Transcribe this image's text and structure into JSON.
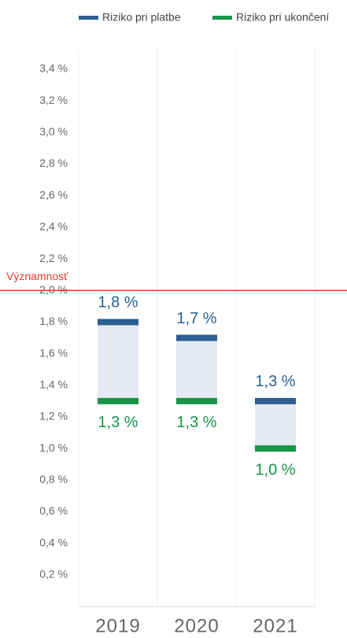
{
  "chart_data": {
    "type": "range",
    "categories": [
      "2019",
      "2020",
      "2021"
    ],
    "series": [
      {
        "name": "Riziko pri platbe",
        "color": "#2b5f91",
        "values": [
          1.8,
          1.7,
          1.3
        ],
        "value_labels": [
          "1,8 %",
          "1,7 %",
          "1,3 %"
        ]
      },
      {
        "name": "Riziko pri ukončení",
        "color": "#179447",
        "values": [
          1.3,
          1.3,
          1.0
        ],
        "value_labels": [
          "1,3 %",
          "1,3 %",
          "1,0 %"
        ]
      }
    ],
    "range_color": "#e6e9f3",
    "threshold": {
      "value": 2.0,
      "label": "Významnosť",
      "color": "#e03c31"
    },
    "ylim": [
      0,
      3.4
    ],
    "yticks": [
      {
        "value": 0.2,
        "label": "0,2 %"
      },
      {
        "value": 0.4,
        "label": "0,4 %"
      },
      {
        "value": 0.6,
        "label": "0,6 %"
      },
      {
        "value": 0.8,
        "label": "0,8 %"
      },
      {
        "value": 1.0,
        "label": "1,0 %"
      },
      {
        "value": 1.2,
        "label": "1,2 %"
      },
      {
        "value": 1.4,
        "label": "1,4 %"
      },
      {
        "value": 1.6,
        "label": "1,6 %"
      },
      {
        "value": 1.8,
        "label": "1,8 %"
      },
      {
        "value": 2.0,
        "label": "2,0 %"
      },
      {
        "value": 2.2,
        "label": "2,2 %"
      },
      {
        "value": 2.4,
        "label": "2,4 %"
      },
      {
        "value": 2.6,
        "label": "2,6 %"
      },
      {
        "value": 2.8,
        "label": "2,8 %"
      },
      {
        "value": 3.0,
        "label": "3,0 %"
      },
      {
        "value": 3.2,
        "label": "3,2 %"
      },
      {
        "value": 3.4,
        "label": "3,4 %"
      }
    ],
    "legend": "top"
  }
}
